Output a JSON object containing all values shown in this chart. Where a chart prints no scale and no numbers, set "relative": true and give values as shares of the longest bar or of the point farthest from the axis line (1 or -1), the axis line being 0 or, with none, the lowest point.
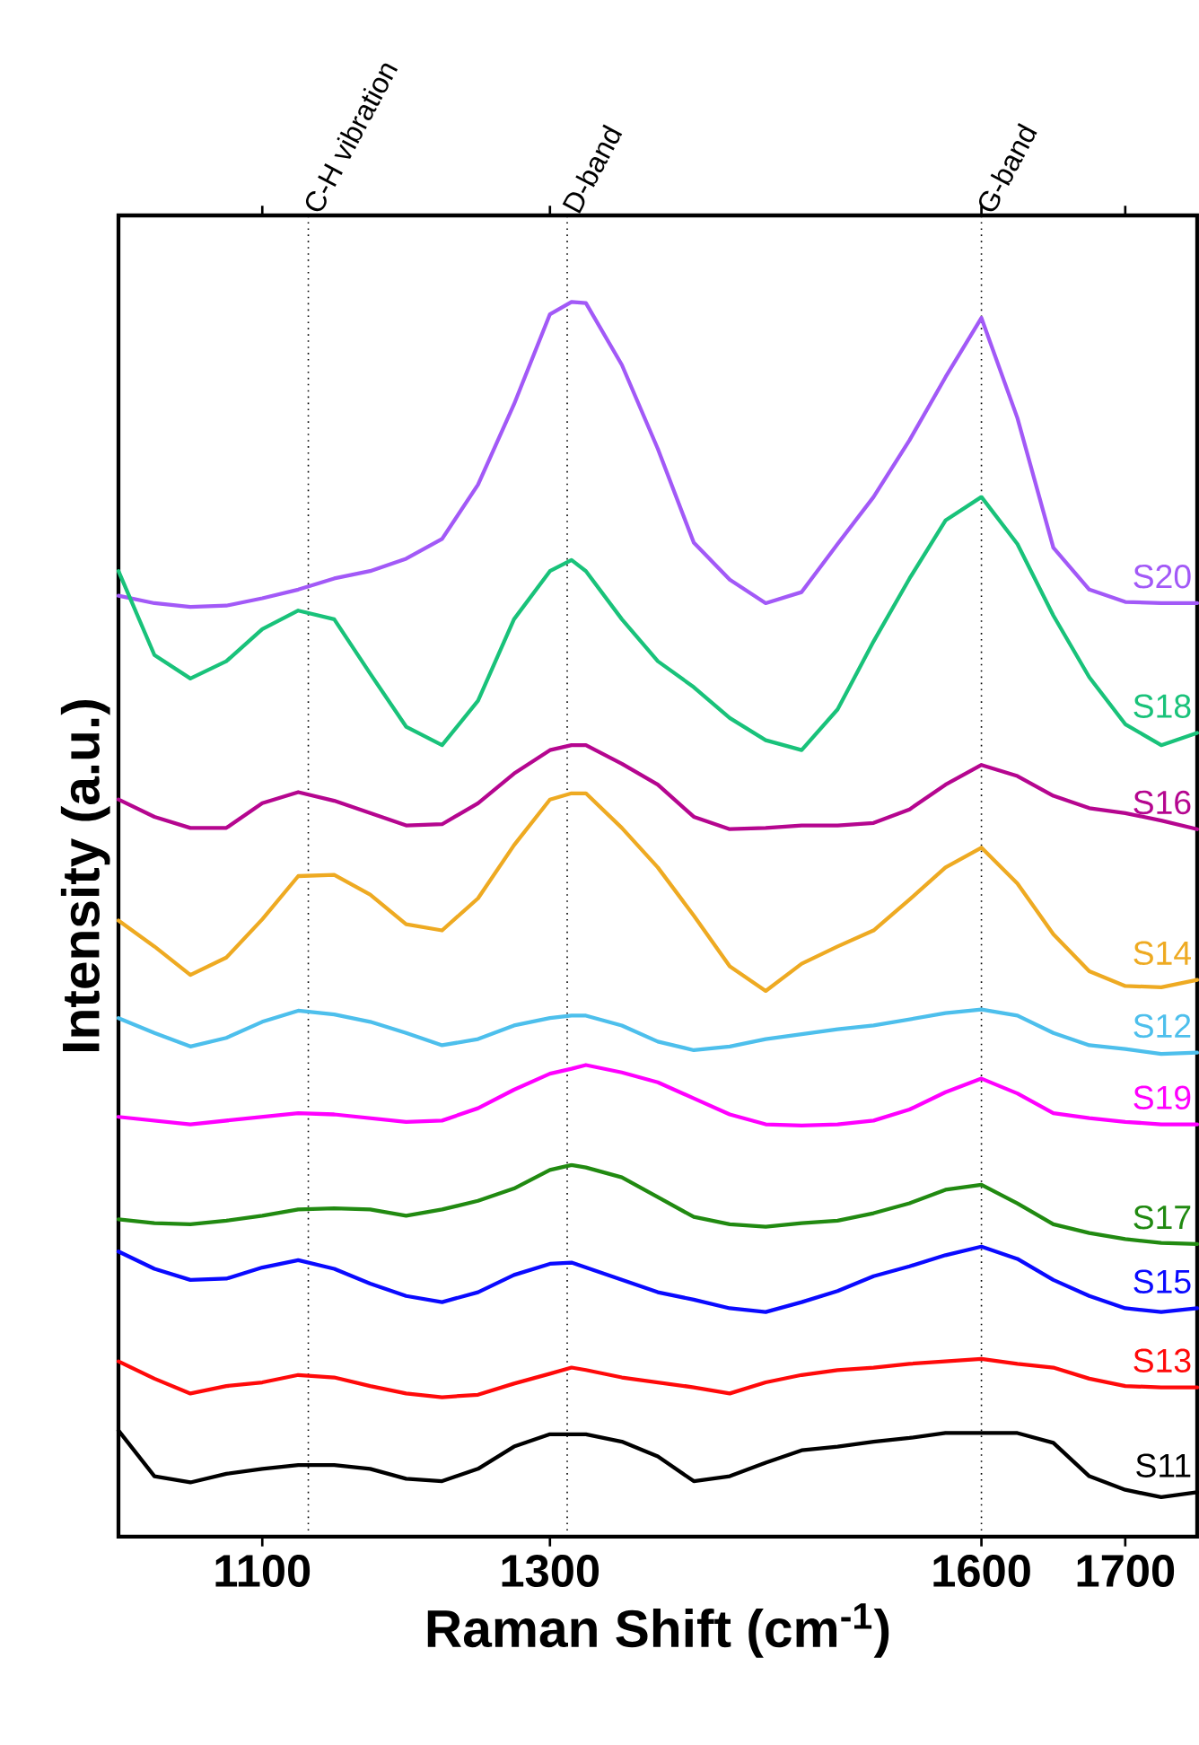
{
  "chart_data": {
    "type": "line",
    "relative": true,
    "xlabel": "Raman Shift (cm$^{-1}$)",
    "ylabel": "Intensity (a.u.)",
    "x": [
      1000,
      1025,
      1050,
      1075,
      1100,
      1125,
      1150,
      1175,
      1200,
      1225,
      1250,
      1275,
      1300,
      1315,
      1325,
      1350,
      1375,
      1400,
      1425,
      1450,
      1475,
      1500,
      1525,
      1550,
      1575,
      1600,
      1625,
      1650,
      1675,
      1700,
      1725,
      1750
    ],
    "xlim": [
      1000,
      1750
    ],
    "xticks": [
      1100,
      1300,
      1600,
      1700
    ],
    "ref_lines": [
      {
        "axis": "x",
        "value": 1132,
        "label": "C-H vibration",
        "color": "#000000",
        "line_style": "dotted"
      },
      {
        "axis": "x",
        "value": 1312,
        "label": "D-band",
        "color": "#000000",
        "line_style": "dotted"
      },
      {
        "axis": "x",
        "value": 1600,
        "label": "G-band",
        "color": "#000000",
        "line_style": "dotted"
      }
    ],
    "series": [
      {
        "name": "S20",
        "color": "#a259f7",
        "values": [
          0.762,
          0.756,
          0.753,
          0.754,
          0.76,
          0.767,
          0.776,
          0.782,
          0.792,
          0.808,
          0.852,
          0.917,
          0.99,
          1,
          0.999,
          0.949,
          0.881,
          0.805,
          0.775,
          0.756,
          0.765,
          0.804,
          0.842,
          0.888,
          0.939,
          0.987,
          0.906,
          0.801,
          0.767,
          0.757,
          0.756,
          0.756
        ]
      },
      {
        "name": "S18",
        "color": "#19c27a",
        "values": [
          0.782,
          0.714,
          0.695,
          0.709,
          0.735,
          0.75,
          0.743,
          0.699,
          0.656,
          0.641,
          0.677,
          0.743,
          0.782,
          0.791,
          0.782,
          0.743,
          0.709,
          0.688,
          0.663,
          0.645,
          0.637,
          0.67,
          0.725,
          0.776,
          0.823,
          0.842,
          0.804,
          0.746,
          0.696,
          0.658,
          0.641,
          0.651
        ]
      },
      {
        "name": "S16",
        "color": "#b5068f",
        "values": [
          0.597,
          0.583,
          0.574,
          0.574,
          0.594,
          0.603,
          0.596,
          0.586,
          0.576,
          0.577,
          0.594,
          0.618,
          0.637,
          0.641,
          0.641,
          0.626,
          0.609,
          0.583,
          0.573,
          0.574,
          0.576,
          0.576,
          0.578,
          0.589,
          0.609,
          0.625,
          0.616,
          0.6,
          0.59,
          0.586,
          0.58,
          0.573
        ]
      },
      {
        "name": "S14",
        "color": "#eeaa22",
        "values": [
          0.499,
          0.478,
          0.455,
          0.469,
          0.5,
          0.535,
          0.536,
          0.52,
          0.496,
          0.491,
          0.517,
          0.56,
          0.597,
          0.602,
          0.602,
          0.574,
          0.542,
          0.503,
          0.462,
          0.442,
          0.464,
          0.478,
          0.491,
          0.516,
          0.542,
          0.558,
          0.529,
          0.488,
          0.458,
          0.446,
          0.445,
          0.451
        ]
      },
      {
        "name": "S12",
        "color": "#4dbfec",
        "values": [
          0.42,
          0.408,
          0.397,
          0.404,
          0.417,
          0.426,
          0.423,
          0.417,
          0.408,
          0.398,
          0.403,
          0.414,
          0.42,
          0.422,
          0.422,
          0.414,
          0.401,
          0.394,
          0.397,
          0.403,
          0.407,
          0.411,
          0.414,
          0.419,
          0.424,
          0.427,
          0.422,
          0.408,
          0.398,
          0.395,
          0.391,
          0.392
        ]
      },
      {
        "name": "S19",
        "color": "#ff00ff",
        "values": [
          0.34,
          0.337,
          0.334,
          0.337,
          0.34,
          0.343,
          0.342,
          0.339,
          0.336,
          0.337,
          0.347,
          0.362,
          0.375,
          0.379,
          0.382,
          0.376,
          0.368,
          0.355,
          0.342,
          0.334,
          0.333,
          0.334,
          0.337,
          0.346,
          0.36,
          0.371,
          0.359,
          0.343,
          0.339,
          0.336,
          0.334,
          0.334
        ]
      },
      {
        "name": "S17",
        "color": "#218a11",
        "values": [
          0.257,
          0.254,
          0.253,
          0.256,
          0.26,
          0.265,
          0.266,
          0.265,
          0.26,
          0.265,
          0.272,
          0.282,
          0.297,
          0.301,
          0.299,
          0.291,
          0.275,
          0.259,
          0.253,
          0.251,
          0.254,
          0.256,
          0.262,
          0.27,
          0.281,
          0.285,
          0.27,
          0.253,
          0.246,
          0.241,
          0.238,
          0.237
        ]
      },
      {
        "name": "S15",
        "color": "#0a0aff",
        "values": [
          0.231,
          0.217,
          0.208,
          0.209,
          0.218,
          0.224,
          0.217,
          0.205,
          0.195,
          0.19,
          0.198,
          0.212,
          0.221,
          0.222,
          0.218,
          0.208,
          0.198,
          0.192,
          0.185,
          0.182,
          0.19,
          0.199,
          0.211,
          0.219,
          0.228,
          0.235,
          0.225,
          0.208,
          0.195,
          0.185,
          0.182,
          0.185
        ]
      },
      {
        "name": "S13",
        "color": "#ff0a0a",
        "values": [
          0.142,
          0.128,
          0.116,
          0.122,
          0.125,
          0.131,
          0.129,
          0.122,
          0.116,
          0.113,
          0.115,
          0.124,
          0.132,
          0.137,
          0.135,
          0.129,
          0.125,
          0.121,
          0.116,
          0.125,
          0.131,
          0.135,
          0.137,
          0.14,
          0.142,
          0.144,
          0.14,
          0.137,
          0.128,
          0.122,
          0.121,
          0.121
        ]
      },
      {
        "name": "S11",
        "color": "#000000",
        "values": [
          0.086,
          0.049,
          0.044,
          0.051,
          0.055,
          0.058,
          0.058,
          0.055,
          0.047,
          0.045,
          0.055,
          0.073,
          0.083,
          0.083,
          0.083,
          0.077,
          0.065,
          0.045,
          0.049,
          0.06,
          0.07,
          0.073,
          0.077,
          0.08,
          0.084,
          0.084,
          0.084,
          0.076,
          0.049,
          0.038,
          0.032,
          0.036
        ]
      }
    ]
  }
}
